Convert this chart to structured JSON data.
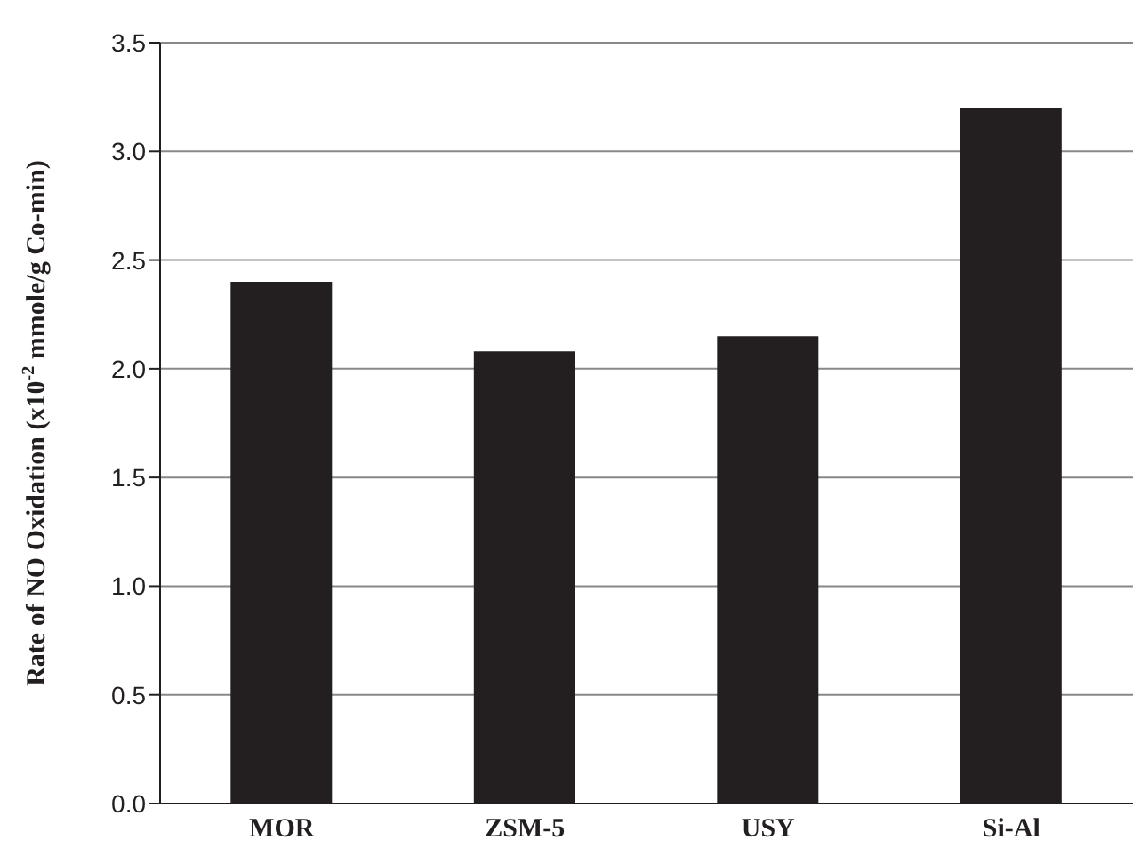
{
  "chart_data": {
    "type": "bar",
    "ylabel": "Rate of NO Oxidation (x10$^{-2}$ mmole/g Co-min)",
    "categories": [
      "MOR",
      "ZSM-5",
      "USY",
      "Si-Al"
    ],
    "values": [
      2.4,
      2.08,
      2.15,
      3.2
    ],
    "color": "#231f20",
    "ylim": [
      0,
      3.5
    ],
    "yticks": [
      {
        "value": 0,
        "label": "0.0"
      },
      {
        "value": 0.5,
        "label": "0.5"
      },
      {
        "value": 1,
        "label": "1.0"
      },
      {
        "value": 1.5,
        "label": "1.5"
      },
      {
        "value": 2,
        "label": "2.0"
      },
      {
        "value": 2.5,
        "label": "2.5"
      },
      {
        "value": 3,
        "label": "3.0"
      },
      {
        "value": 3.5,
        "label": "3.5"
      }
    ],
    "grid": "y"
  }
}
